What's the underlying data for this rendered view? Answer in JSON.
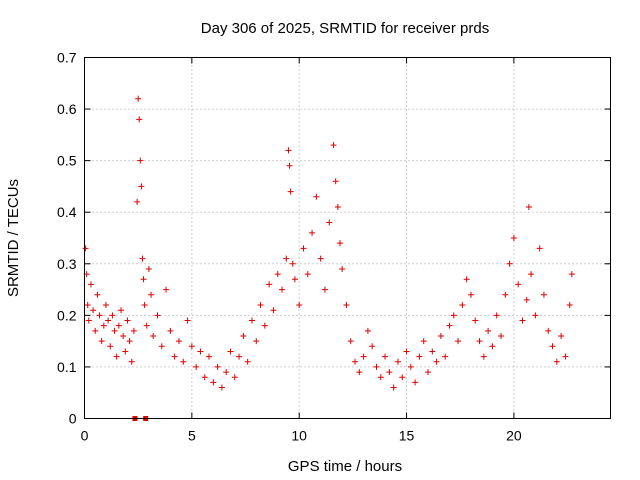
{
  "chart_data": {
    "type": "scatter",
    "title": "Day 306 of 2025, SRMTID for receiver prds",
    "xlabel": "GPS time / hours",
    "ylabel": "SRMTID / TECUs",
    "xlim": [
      0,
      24.5
    ],
    "ylim": [
      0,
      0.7
    ],
    "x_ticks": [
      0,
      5,
      10,
      15,
      20
    ],
    "x_tick_labels": [
      "0",
      "5",
      "10",
      "15",
      "20"
    ],
    "y_ticks": [
      0,
      0.1,
      0.2,
      0.3,
      0.4,
      0.5,
      0.6,
      0.7
    ],
    "y_tick_labels": [
      "0",
      "0.1",
      "0.2",
      "0.3",
      "0.4",
      "0.5",
      "0.6",
      "0.7"
    ],
    "grid": true,
    "marker": "plus",
    "color": "#e00000",
    "series": [
      {
        "name": "SRMTID",
        "x": [
          0.05,
          0.1,
          0.15,
          0.2,
          0.3,
          0.4,
          0.5,
          0.6,
          0.7,
          0.8,
          0.9,
          1.0,
          1.1,
          1.2,
          1.3,
          1.4,
          1.5,
          1.6,
          1.7,
          1.8,
          1.9,
          2.0,
          2.1,
          2.2,
          2.3,
          2.45,
          2.5,
          2.55,
          2.6,
          2.65,
          2.7,
          2.75,
          2.8,
          2.9,
          3.0,
          3.1,
          3.2,
          3.4,
          3.6,
          3.8,
          4.0,
          4.2,
          4.4,
          4.6,
          4.8,
          5.0,
          5.2,
          5.4,
          5.6,
          5.8,
          6.0,
          6.2,
          6.4,
          6.6,
          6.8,
          7.0,
          7.2,
          7.4,
          7.6,
          7.8,
          8.0,
          8.2,
          8.4,
          8.6,
          8.8,
          9.0,
          9.2,
          9.4,
          9.5,
          9.55,
          9.6,
          9.7,
          9.8,
          10.0,
          10.2,
          10.4,
          10.6,
          10.8,
          11.0,
          11.2,
          11.4,
          11.6,
          11.7,
          11.8,
          11.9,
          12.0,
          12.2,
          12.4,
          12.6,
          12.8,
          13.0,
          13.2,
          13.4,
          13.6,
          13.8,
          14.0,
          14.2,
          14.4,
          14.6,
          14.8,
          15.0,
          15.2,
          15.4,
          15.6,
          15.8,
          16.0,
          16.2,
          16.4,
          16.6,
          16.8,
          17.0,
          17.2,
          17.4,
          17.6,
          17.8,
          18.0,
          18.2,
          18.4,
          18.6,
          18.8,
          19.0,
          19.2,
          19.4,
          19.6,
          19.8,
          20.0,
          20.2,
          20.4,
          20.6,
          20.7,
          20.8,
          21.0,
          21.2,
          21.4,
          21.6,
          21.8,
          22.0,
          22.2,
          22.4,
          22.6,
          22.7
        ],
        "y": [
          0.33,
          0.28,
          0.22,
          0.19,
          0.26,
          0.21,
          0.17,
          0.24,
          0.2,
          0.15,
          0.18,
          0.22,
          0.19,
          0.14,
          0.2,
          0.17,
          0.12,
          0.18,
          0.21,
          0.16,
          0.13,
          0.19,
          0.15,
          0.11,
          0.17,
          0.42,
          0.62,
          0.58,
          0.5,
          0.45,
          0.31,
          0.27,
          0.22,
          0.18,
          0.29,
          0.24,
          0.16,
          0.2,
          0.14,
          0.25,
          0.17,
          0.12,
          0.15,
          0.11,
          0.19,
          0.14,
          0.1,
          0.13,
          0.08,
          0.12,
          0.07,
          0.1,
          0.06,
          0.09,
          0.13,
          0.08,
          0.12,
          0.16,
          0.11,
          0.19,
          0.15,
          0.22,
          0.18,
          0.26,
          0.21,
          0.28,
          0.25,
          0.31,
          0.52,
          0.49,
          0.44,
          0.3,
          0.27,
          0.22,
          0.33,
          0.28,
          0.36,
          0.43,
          0.31,
          0.25,
          0.38,
          0.53,
          0.46,
          0.41,
          0.34,
          0.29,
          0.22,
          0.15,
          0.11,
          0.09,
          0.12,
          0.17,
          0.14,
          0.1,
          0.08,
          0.12,
          0.09,
          0.06,
          0.11,
          0.08,
          0.13,
          0.1,
          0.07,
          0.12,
          0.15,
          0.09,
          0.13,
          0.11,
          0.16,
          0.12,
          0.18,
          0.2,
          0.15,
          0.22,
          0.27,
          0.24,
          0.19,
          0.15,
          0.12,
          0.17,
          0.14,
          0.2,
          0.16,
          0.24,
          0.3,
          0.35,
          0.26,
          0.19,
          0.23,
          0.41,
          0.28,
          0.2,
          0.33,
          0.24,
          0.17,
          0.14,
          0.11,
          0.16,
          0.12,
          0.22,
          0.28
        ]
      }
    ],
    "gaps": [
      2.35,
      2.85
    ]
  }
}
